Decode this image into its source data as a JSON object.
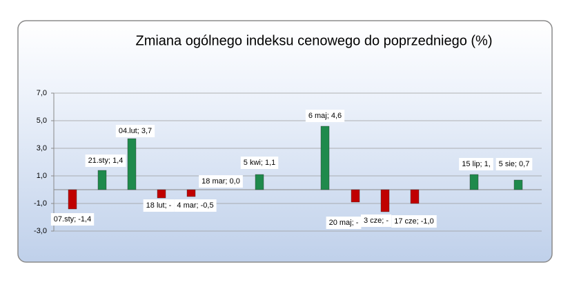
{
  "chart_data": {
    "type": "bar",
    "title": "Zmiana ogólnego indeksu cenowego do poprzedniego (%)",
    "values": [
      -1.4,
      1.4,
      3.7,
      -0.6,
      -0.5,
      0.0,
      1.1,
      4.6,
      -0.9,
      -1.6,
      -1.0,
      1.1,
      0.7
    ],
    "value_labels": [
      "07.sty; -1,4",
      "21.sty; 1,4",
      "04.lut; 3,7",
      "18 lut; -",
      "4 mar; -0,5",
      "18 mar; 0,0",
      "5 kwi; 1,1",
      "6 maj; 4,6",
      "20 maj; -",
      "3 cze; -",
      "17 cze; -1,0",
      "15 lip; 1,",
      "5 sie; 0,7"
    ],
    "colors": {
      "positive": "#1f8a4c",
      "negative": "#c00000"
    },
    "ylim": [
      -3,
      7
    ],
    "yticks": [
      {
        "value": -3,
        "label": "-3,0"
      },
      {
        "value": -1,
        "label": "-1,0"
      },
      {
        "value": 1,
        "label": "1,0"
      },
      {
        "value": 3,
        "label": "3,0"
      },
      {
        "value": 5,
        "label": "5,0"
      },
      {
        "value": 7,
        "label": "7,0"
      }
    ],
    "grid": true
  }
}
